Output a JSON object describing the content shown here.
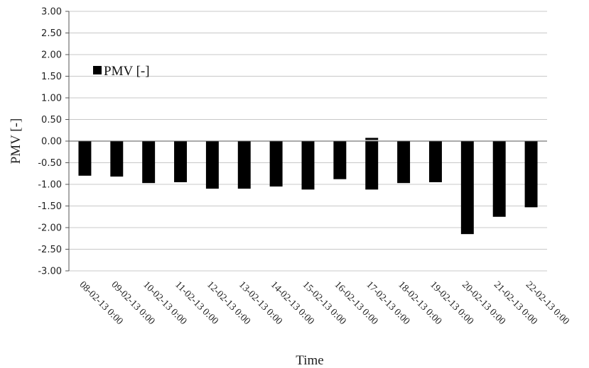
{
  "chart_data": {
    "type": "bar",
    "title": "",
    "xlabel": "Time",
    "ylabel": "PMV [-]",
    "ylim": [
      -3.0,
      3.0
    ],
    "y_ticks": [
      "3.00",
      "2.50",
      "2.00",
      "1.50",
      "1.00",
      "0.50",
      "0.00",
      "-0.50",
      "-1.00",
      "-1.50",
      "-2.00",
      "-2.50",
      "-3.00"
    ],
    "grid": true,
    "legend": {
      "position": "upper-left",
      "label": "PMV [-]"
    },
    "categories": [
      "08-02-13 0:00",
      "09-02-13 0:00",
      "10-02-13 0:00",
      "11-02-13 0:00",
      "12-02-13 0:00",
      "13-02-13 0:00",
      "14-02-13 0:00",
      "15-02-13 0:00",
      "16-02-13 0:00",
      "17-02-13 0:00",
      "18-02-13 0:00",
      "19-02-13 0:00",
      "20-02-13 0:00",
      "21-02-13 0:00",
      "22-02-13 0:00"
    ],
    "series": [
      {
        "name": "PMV [-]",
        "color": "#000000",
        "values": [
          -0.8,
          -0.82,
          -0.97,
          -0.95,
          -1.1,
          -1.1,
          -1.05,
          -1.12,
          -0.88,
          -1.12,
          -0.97,
          -0.95,
          -2.15,
          -1.75,
          -1.53
        ]
      }
    ],
    "markers": [
      {
        "category": "17-02-13 0:00",
        "value": 0.05
      }
    ]
  }
}
